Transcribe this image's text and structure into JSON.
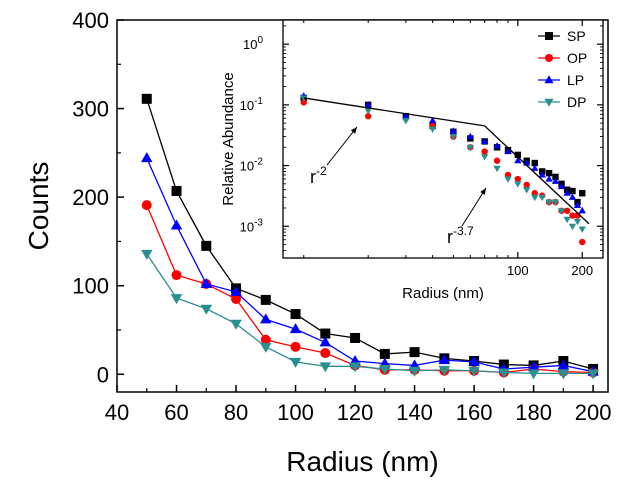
{
  "chart_data": [
    {
      "type": "line",
      "xlabel": "Radius (nm)",
      "ylabel": "Counts",
      "xlim": [
        40,
        205
      ],
      "ylim": [
        -20,
        400
      ],
      "xticks": [
        40,
        60,
        80,
        100,
        120,
        140,
        160,
        180,
        200
      ],
      "yticks": [
        0,
        100,
        200,
        300,
        400
      ],
      "x": [
        50,
        60,
        70,
        80,
        90,
        100,
        110,
        120,
        130,
        140,
        150,
        160,
        170,
        180,
        190,
        200
      ],
      "series": [
        {
          "name": "SP",
          "color": "#000000",
          "marker": "square",
          "values": [
            311,
            207,
            145,
            97,
            84,
            68,
            46,
            41,
            23,
            25,
            18,
            15,
            11,
            10,
            15,
            6
          ]
        },
        {
          "name": "OP",
          "color": "#ff0000",
          "marker": "circle",
          "values": [
            191,
            112,
            102,
            85,
            39,
            31,
            24,
            10,
            5,
            5,
            4,
            4,
            2,
            6,
            3,
            2
          ]
        },
        {
          "name": "LP",
          "color": "#0000ff",
          "marker": "triangle-up",
          "values": [
            244,
            168,
            102,
            93,
            62,
            51,
            36,
            15,
            12,
            10,
            16,
            14,
            6,
            8,
            10,
            3
          ]
        },
        {
          "name": "DP",
          "color": "#2a8f8f",
          "marker": "triangle-down",
          "values": [
            136,
            86,
            74,
            57,
            31,
            14,
            9,
            9,
            6,
            4,
            5,
            4,
            2,
            1,
            1,
            1
          ]
        }
      ]
    },
    {
      "type": "scatter",
      "inset": true,
      "xlabel": "Radius (nm)",
      "ylabel": "Relative Abundance",
      "xscale": "log",
      "yscale": "log",
      "xlim": [
        8,
        250
      ],
      "ylim": [
        0.0003,
        2.5
      ],
      "xticks": [
        100,
        200
      ],
      "yticks": [
        0.001,
        0.01,
        0.1,
        1
      ],
      "ytick_labels": {
        "base": "10",
        "exps": [
          "-3",
          "-2",
          "-1",
          "0"
        ]
      },
      "legend": {
        "position": "top-right"
      },
      "x": [
        10,
        20,
        30,
        40,
        50,
        60,
        70,
        80,
        90,
        100,
        110,
        120,
        130,
        140,
        150,
        160,
        170,
        180,
        190,
        200
      ],
      "series": [
        {
          "name": "SP",
          "color": "#000000",
          "marker": "square",
          "values": [
            0.13,
            0.1,
            0.065,
            0.045,
            0.036,
            0.028,
            0.025,
            0.02,
            0.018,
            0.015,
            0.012,
            0.011,
            0.008,
            0.0075,
            0.0065,
            0.005,
            0.004,
            0.0038,
            0.0025,
            0.0035
          ]
        },
        {
          "name": "OP",
          "color": "#ff0000",
          "marker": "circle",
          "values": [
            0.11,
            0.065,
            0.06,
            0.045,
            0.03,
            0.02,
            0.017,
            0.012,
            0.007,
            0.006,
            0.0048,
            0.0035,
            0.0032,
            0.0025,
            0.0025,
            0.0018,
            0.0018,
            0.0015,
            0.0015,
            0.00055
          ]
        },
        {
          "name": "LP",
          "color": "#0000ff",
          "marker": "triangle-up",
          "values": [
            0.14,
            0.1,
            0.065,
            0.055,
            0.037,
            0.03,
            0.025,
            0.021,
            0.017,
            0.012,
            0.011,
            0.009,
            0.007,
            0.006,
            0.0055,
            0.0045,
            0.0035,
            0.003,
            0.0022,
            0.0018
          ]
        },
        {
          "name": "DP",
          "color": "#2a8f8f",
          "marker": "triangle-down",
          "values": [
            0.13,
            0.08,
            0.055,
            0.04,
            0.03,
            0.02,
            0.014,
            0.009,
            0.006,
            0.005,
            0.004,
            0.003,
            0.003,
            0.0025,
            0.0025,
            0.0018,
            0.0013,
            0.001,
            0.0012,
            0.0009
          ]
        }
      ],
      "fits": [
        {
          "label": "r",
          "exponent": "-2",
          "x_from": 10,
          "x_to": 70,
          "y_from": 0.13,
          "y_to": 0.045
        },
        {
          "label": "r",
          "exponent": "-3.7",
          "x_from": 70,
          "x_to": 215,
          "y_from": 0.045,
          "y_to": 0.0011
        }
      ]
    }
  ]
}
